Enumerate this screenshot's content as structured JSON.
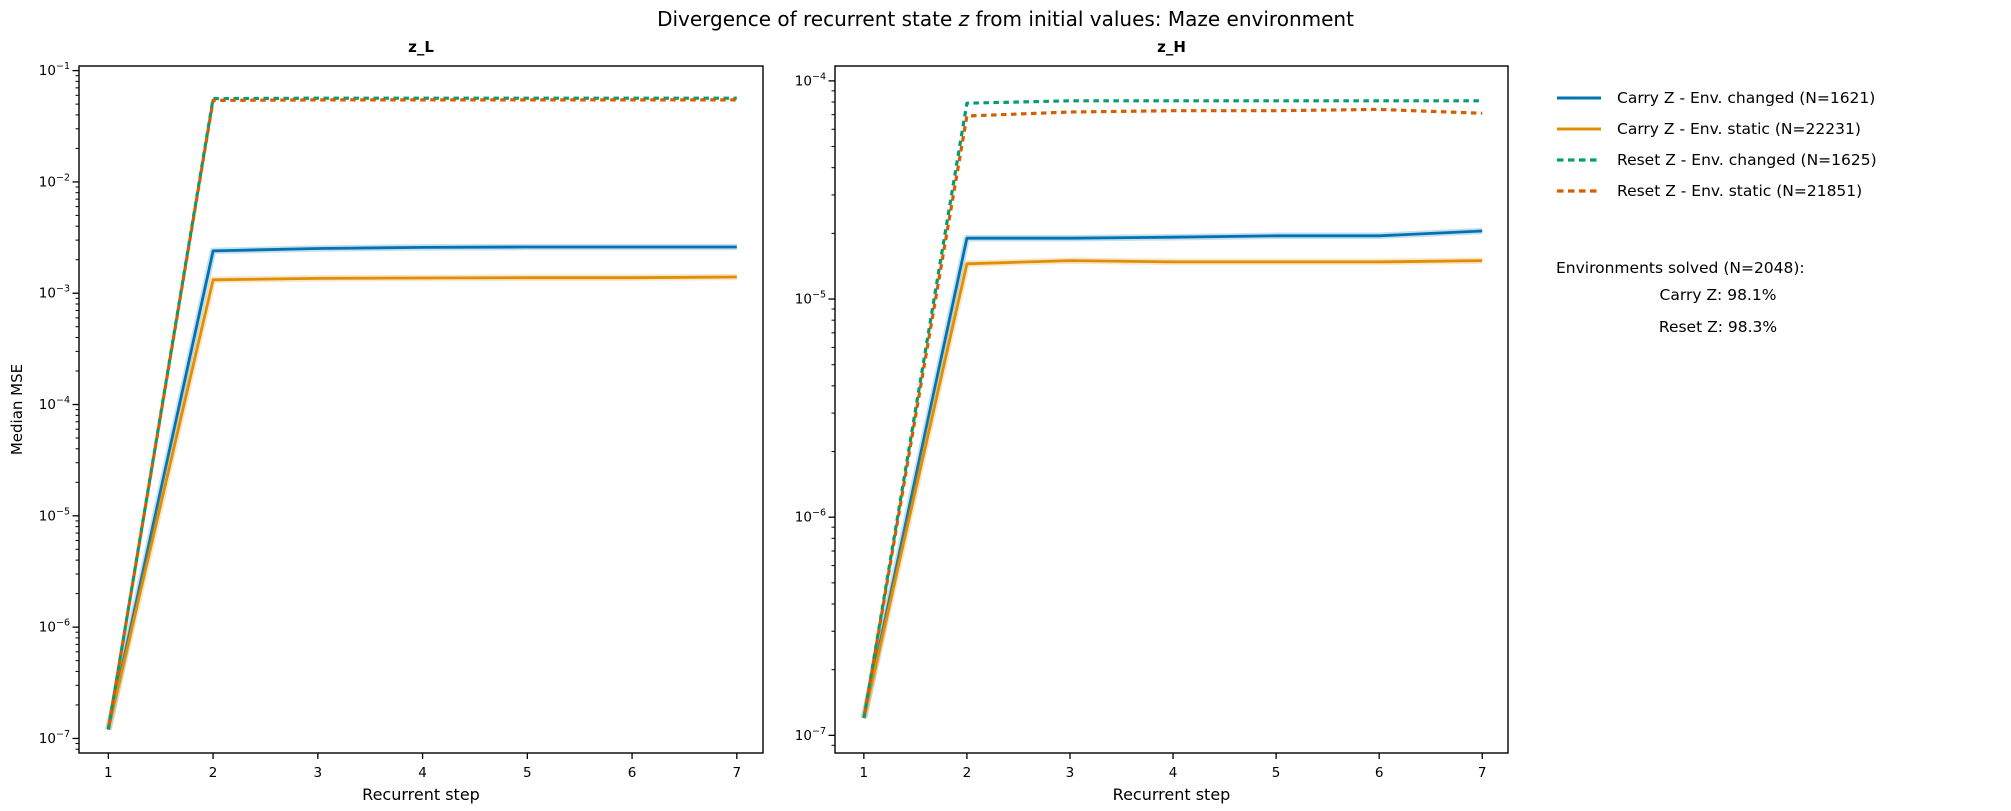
{
  "figure": {
    "title_pre": "Divergence of recurrent state ",
    "title_italic": "z",
    "title_post": " from initial values: Maze environment"
  },
  "legend": {
    "items": [
      {
        "label": "Carry Z - Env. changed (N=1621)",
        "color": "#0173b2",
        "style": "solid",
        "icon": "line-solid-blue"
      },
      {
        "label": "Carry Z - Env. static (N=22231)",
        "color": "#de8f05",
        "style": "solid",
        "icon": "line-solid-amber"
      },
      {
        "label": "Reset Z - Env. changed (N=1625)",
        "color": "#029e73",
        "style": "dashed",
        "icon": "line-dashed-teal"
      },
      {
        "label": "Reset Z - Env. static (N=21851)",
        "color": "#d55e00",
        "style": "dashed",
        "icon": "line-dashed-orange"
      }
    ]
  },
  "side_text": {
    "heading": "Environments solved (N=2048):",
    "lines": [
      "Carry Z: 98.1%",
      "Reset Z: 98.3%"
    ]
  },
  "chart_data": [
    {
      "type": "line",
      "title": "z_L",
      "xlabel": "Recurrent step",
      "ylabel": "Median MSE",
      "yscale": "log",
      "x": [
        1,
        2,
        3,
        4,
        5,
        6,
        7
      ],
      "x_ticks": [
        1,
        2,
        3,
        4,
        5,
        6,
        7
      ],
      "xlim": [
        0.72,
        7.25
      ],
      "ylim": [
        7.4e-08,
        0.11
      ],
      "y_tick_exponents": [
        -1,
        -2,
        -3,
        -4,
        -5,
        -6,
        -7
      ],
      "grid": false,
      "series": [
        {
          "name": "Carry Z - Env. changed (N=1621)",
          "color": "#0173b2",
          "style": "solid",
          "values": [
            1.2e-07,
            0.0024,
            0.00252,
            0.00258,
            0.0026,
            0.0026,
            0.0026
          ]
        },
        {
          "name": "Carry Z - Env. static (N=22231)",
          "color": "#de8f05",
          "style": "solid",
          "values": [
            1.2e-07,
            0.00132,
            0.00136,
            0.00137,
            0.00138,
            0.00138,
            0.0014
          ]
        },
        {
          "name": "Reset Z - Env. changed (N=1625)",
          "color": "#029e73",
          "style": "dashed",
          "values": [
            1.2e-07,
            0.056,
            0.0565,
            0.0565,
            0.0565,
            0.0565,
            0.0565
          ]
        },
        {
          "name": "Reset Z - Env. static (N=21851)",
          "color": "#d55e00",
          "style": "dashed",
          "values": [
            1.2e-07,
            0.054,
            0.0545,
            0.0545,
            0.0545,
            0.0545,
            0.0545
          ]
        }
      ]
    },
    {
      "type": "line",
      "title": "z_H",
      "xlabel": "Recurrent step",
      "ylabel": "",
      "yscale": "log",
      "x": [
        1,
        2,
        3,
        4,
        5,
        6,
        7
      ],
      "x_ticks": [
        1,
        2,
        3,
        4,
        5,
        6,
        7
      ],
      "xlim": [
        0.72,
        7.25
      ],
      "ylim": [
        8.3e-08,
        0.000117
      ],
      "y_tick_exponents": [
        -4,
        -5,
        -6,
        -7
      ],
      "grid": false,
      "series": [
        {
          "name": "Carry Z - Env. changed (N=1621)",
          "color": "#0173b2",
          "style": "solid",
          "values": [
            1.2e-07,
            1.9e-05,
            1.9e-05,
            1.92e-05,
            1.95e-05,
            1.95e-05,
            2.05e-05
          ]
        },
        {
          "name": "Carry Z - Env. static (N=22231)",
          "color": "#de8f05",
          "style": "solid",
          "values": [
            1.2e-07,
            1.45e-05,
            1.5e-05,
            1.48e-05,
            1.48e-05,
            1.48e-05,
            1.5e-05
          ]
        },
        {
          "name": "Reset Z - Env. changed (N=1625)",
          "color": "#029e73",
          "style": "dashed",
          "values": [
            1.2e-07,
            7.9e-05,
            8.1e-05,
            8.1e-05,
            8.1e-05,
            8.1e-05,
            8.1e-05
          ]
        },
        {
          "name": "Reset Z - Env. static (N=21851)",
          "color": "#d55e00",
          "style": "dashed",
          "values": [
            1.2e-07,
            6.9e-05,
            7.2e-05,
            7.3e-05,
            7.3e-05,
            7.4e-05,
            7.1e-05
          ]
        }
      ]
    }
  ]
}
